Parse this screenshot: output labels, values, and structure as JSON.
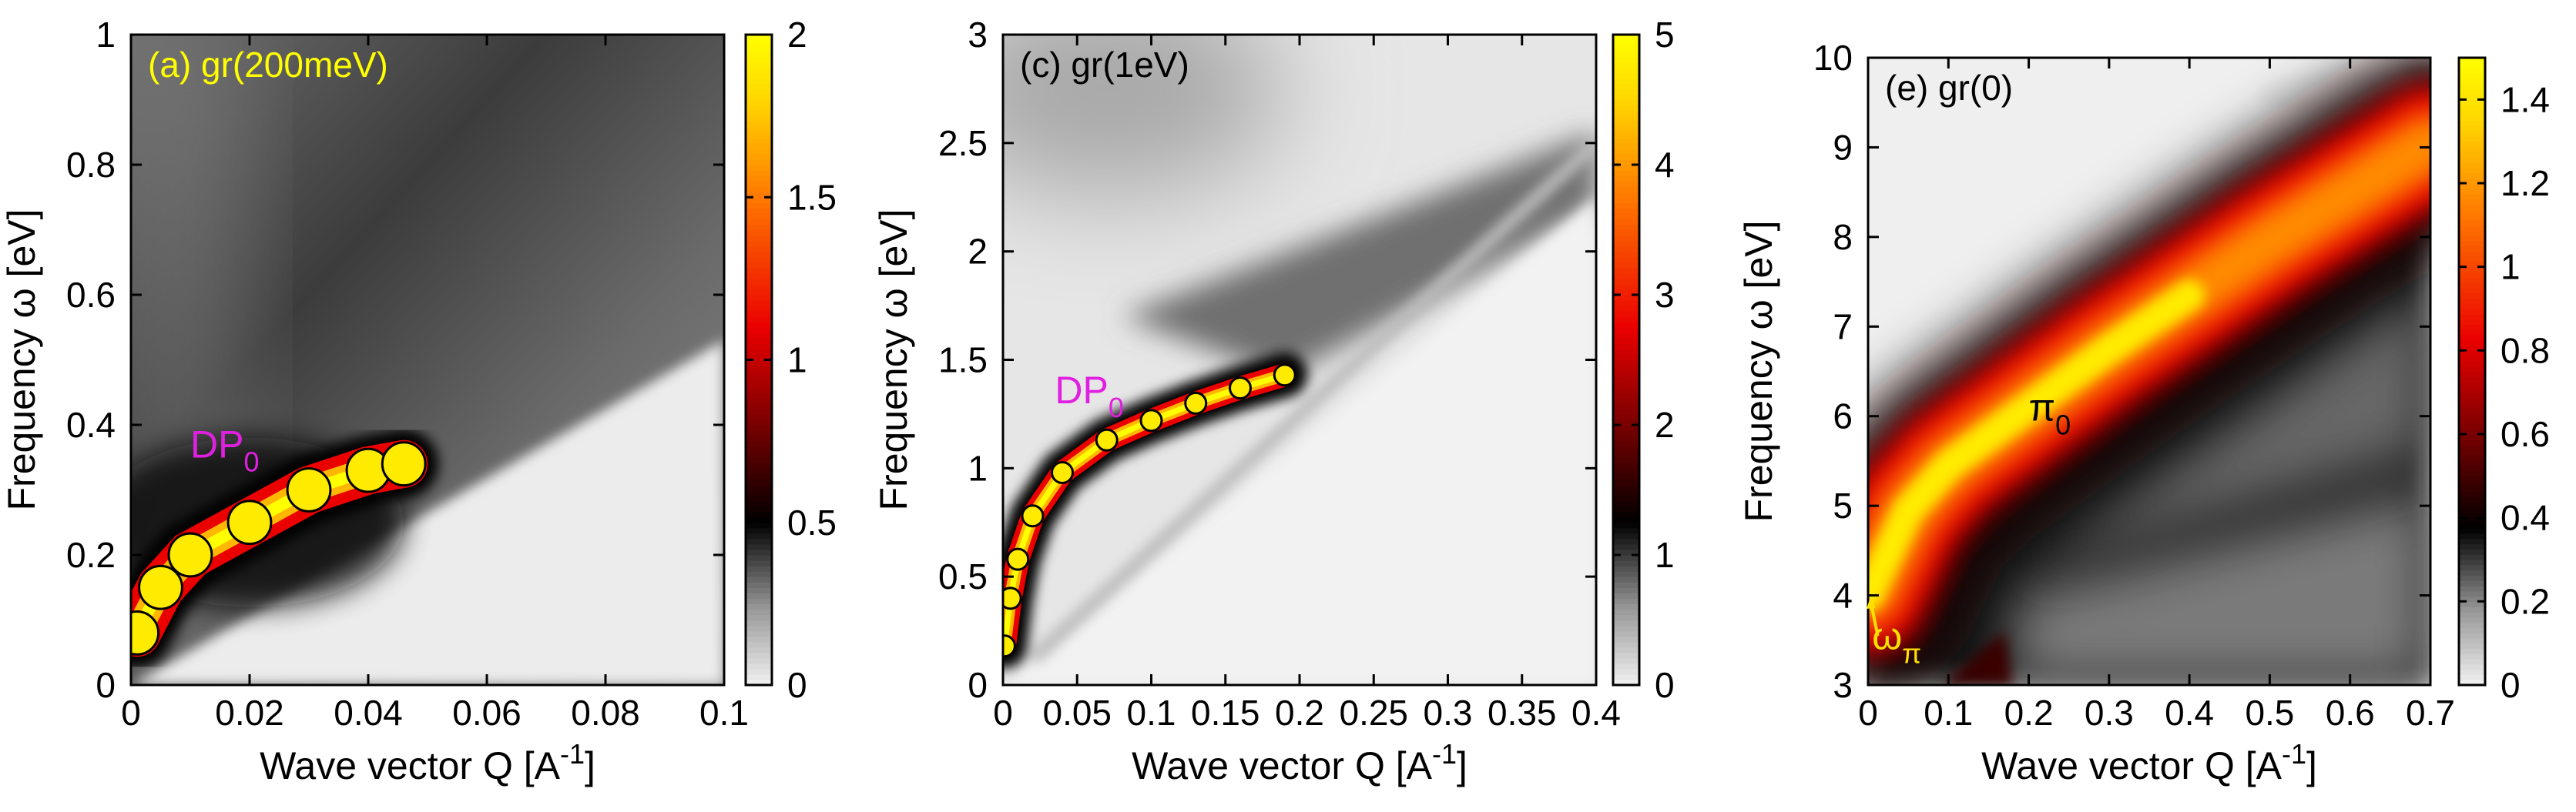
{
  "chart_data": [
    {
      "type": "heatmap",
      "panel_label": "(a) gr(200meV)",
      "xlabel": "Wave vector Q [A",
      "ylabel": "Frequency ω [eV]",
      "xlim": [
        0,
        0.1
      ],
      "ylim": [
        0,
        1
      ],
      "clim": [
        0,
        2
      ],
      "xticks": [
        "0",
        "0.02",
        "0.04",
        "0.06",
        "0.08",
        "0.1"
      ],
      "yticks": [
        "0",
        "0.2",
        "0.4",
        "0.6",
        "0.8",
        "1"
      ],
      "cticks": [
        "0",
        "0.5",
        "1",
        "1.5",
        "2"
      ],
      "annotations": [
        {
          "text": "DP",
          "sub": "0",
          "x": 0.01,
          "y": 0.35,
          "color": "#e020e0"
        }
      ],
      "features": [
        {
          "name": "DP0 plasmon branch",
          "points": [
            [
              0.001,
              0.08
            ],
            [
              0.005,
              0.15
            ],
            [
              0.01,
              0.2
            ],
            [
              0.02,
              0.25
            ],
            [
              0.03,
              0.3
            ],
            [
              0.04,
              0.33
            ],
            [
              0.046,
              0.34
            ]
          ],
          "peak": 2.0
        },
        {
          "name": "intraband edge",
          "points": [
            [
              0.0,
              0.0
            ],
            [
              0.1,
              0.53
            ]
          ]
        }
      ]
    },
    {
      "type": "heatmap",
      "panel_label": "(c) gr(1eV)",
      "xlabel": "Wave vector Q [A",
      "ylabel": "Frequency ω [eV]",
      "xlim": [
        0,
        0.4
      ],
      "ylim": [
        0,
        3
      ],
      "clim": [
        0,
        5
      ],
      "xticks": [
        "0",
        "0.05",
        "0.1",
        "0.15",
        "0.2",
        "0.25",
        "0.3",
        "0.35",
        "0.4"
      ],
      "yticks": [
        "0",
        "0.5",
        "1",
        "1.5",
        "2",
        "2.5",
        "3"
      ],
      "cticks": [
        "0",
        "1",
        "2",
        "3",
        "4",
        "5"
      ],
      "annotations": [
        {
          "text": "DP",
          "sub": "0",
          "x": 0.035,
          "y": 1.3,
          "color": "#e020e0"
        }
      ],
      "features": [
        {
          "name": "DP0 plasmon branch",
          "points": [
            [
              0.001,
              0.18
            ],
            [
              0.005,
              0.4
            ],
            [
              0.01,
              0.58
            ],
            [
              0.02,
              0.78
            ],
            [
              0.04,
              0.98
            ],
            [
              0.07,
              1.13
            ],
            [
              0.1,
              1.22
            ],
            [
              0.13,
              1.3
            ],
            [
              0.16,
              1.37
            ],
            [
              0.19,
              1.43
            ]
          ],
          "peak": 5.0
        },
        {
          "name": "intraband edge",
          "points": [
            [
              0.0,
              0.0
            ],
            [
              0.4,
              2.5
            ]
          ]
        }
      ]
    },
    {
      "type": "heatmap",
      "panel_label": "(e) gr(0)",
      "xlabel": "Wave vector Q [A",
      "ylabel": "Frequency ω [eV]",
      "xlim": [
        0,
        0.7
      ],
      "ylim": [
        3,
        10
      ],
      "clim": [
        0,
        1.5
      ],
      "xticks": [
        "0",
        "0.1",
        "0.2",
        "0.3",
        "0.4",
        "0.5",
        "0.6",
        "0.7"
      ],
      "yticks": [
        "3",
        "4",
        "5",
        "6",
        "7",
        "8",
        "9",
        "10"
      ],
      "cticks": [
        "0",
        "0.2",
        "0.4",
        "0.6",
        "0.8",
        "1",
        "1.2",
        "1.4"
      ],
      "annotations": [
        {
          "text": "π",
          "sub": "0",
          "x": 0.2,
          "y": 5.95,
          "color": "#000000"
        },
        {
          "text": "ω",
          "sub": "π",
          "x": 0.005,
          "y": 3.4,
          "color": "#ffe000"
        }
      ],
      "features": [
        {
          "name": "pi0 plasmon branch",
          "points": [
            [
              0.0,
              4.0
            ],
            [
              0.05,
              4.95
            ],
            [
              0.1,
              5.45
            ],
            [
              0.2,
              6.1
            ],
            [
              0.3,
              6.75
            ],
            [
              0.4,
              7.35
            ],
            [
              0.5,
              7.95
            ],
            [
              0.6,
              8.5
            ],
            [
              0.7,
              9.05
            ]
          ],
          "peak": 1.5
        },
        {
          "name": "interband edge",
          "points": [
            [
              0.2,
              4.3
            ],
            [
              0.7,
              7.5
            ]
          ]
        }
      ]
    }
  ]
}
